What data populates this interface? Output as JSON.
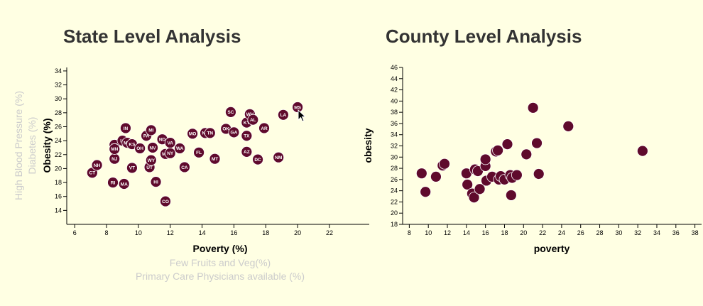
{
  "left_panel": {
    "title": "State Level Analysis",
    "x_axis_options": [
      "Poverty (%)",
      "Few Fruits and Veg(%)",
      "Primary Care Physicians available (%)"
    ],
    "y_axis_options": [
      "Obesity (%)",
      "Diabetes (%)",
      "High Blood Pressure (%)"
    ]
  },
  "right_panel": {
    "title": "County Level Analysis"
  },
  "colors": {
    "marker": "#5f0a2c",
    "title": "#333333",
    "inactive_label": "#cccccc",
    "background": "#ffffe3"
  },
  "chart_data": [
    {
      "type": "scatter",
      "title": "State Level Analysis",
      "xlabel": "Poverty (%)",
      "ylabel": "Obesity (%)",
      "xlim": [
        5.5,
        24.5
      ],
      "ylim": [
        12,
        34.5
      ],
      "xticks": [
        6,
        8,
        10,
        12,
        14,
        16,
        18,
        20,
        22
      ],
      "yticks": [
        14,
        16,
        18,
        20,
        22,
        24,
        26,
        28,
        30,
        32,
        34
      ],
      "points": [
        {
          "label": "CT",
          "x": 7.1,
          "y": 19.4
        },
        {
          "label": "NH",
          "x": 7.4,
          "y": 20.5
        },
        {
          "label": "RI",
          "x": 8.4,
          "y": 18.0
        },
        {
          "label": "MA",
          "x": 9.1,
          "y": 17.8
        },
        {
          "label": "NJ",
          "x": 8.5,
          "y": 21.4
        },
        {
          "label": "WI",
          "x": 8.5,
          "y": 23.4
        },
        {
          "label": "MN",
          "x": 8.5,
          "y": 22.8
        },
        {
          "label": "IA",
          "x": 9.0,
          "y": 24.0
        },
        {
          "label": "MD",
          "x": 9.3,
          "y": 23.7
        },
        {
          "label": "VT",
          "x": 9.6,
          "y": 20.1
        },
        {
          "label": "IN",
          "x": 9.2,
          "y": 25.8
        },
        {
          "label": "KS",
          "x": 9.6,
          "y": 23.5
        },
        {
          "label": "OH",
          "x": 10.1,
          "y": 22.9
        },
        {
          "label": "PA",
          "x": 10.5,
          "y": 24.7
        },
        {
          "label": "MI",
          "x": 10.8,
          "y": 25.5
        },
        {
          "label": "UT",
          "x": 10.7,
          "y": 20.2
        },
        {
          "label": "WY",
          "x": 10.8,
          "y": 21.2
        },
        {
          "label": "NV",
          "x": 10.9,
          "y": 23.0
        },
        {
          "label": "HI",
          "x": 11.1,
          "y": 18.1
        },
        {
          "label": "ND",
          "x": 11.5,
          "y": 24.2
        },
        {
          "label": "ME",
          "x": 11.7,
          "y": 22.1
        },
        {
          "label": "VA",
          "x": 12.0,
          "y": 23.7
        },
        {
          "label": "NY",
          "x": 12.0,
          "y": 22.2
        },
        {
          "label": "WA",
          "x": 12.6,
          "y": 22.9
        },
        {
          "label": "CO",
          "x": 11.7,
          "y": 15.3
        },
        {
          "label": "CA",
          "x": 12.9,
          "y": 20.2
        },
        {
          "label": "MO",
          "x": 13.4,
          "y": 25.0
        },
        {
          "label": "FL",
          "x": 13.8,
          "y": 22.3
        },
        {
          "label": "NC",
          "x": 14.2,
          "y": 25.1
        },
        {
          "label": "TN",
          "x": 14.5,
          "y": 25.1
        },
        {
          "label": "MT",
          "x": 14.8,
          "y": 21.4
        },
        {
          "label": "OK",
          "x": 15.5,
          "y": 25.7
        },
        {
          "label": "SC",
          "x": 15.8,
          "y": 28.1
        },
        {
          "label": "GA",
          "x": 16.0,
          "y": 25.2
        },
        {
          "label": "AZ",
          "x": 16.8,
          "y": 22.4
        },
        {
          "label": "DC",
          "x": 17.5,
          "y": 21.3
        },
        {
          "label": "TX",
          "x": 16.8,
          "y": 24.7
        },
        {
          "label": "KY",
          "x": 16.8,
          "y": 26.6
        },
        {
          "label": "WV",
          "x": 17.0,
          "y": 27.8
        },
        {
          "label": "AL",
          "x": 17.2,
          "y": 27.0
        },
        {
          "label": "AR",
          "x": 17.9,
          "y": 25.8
        },
        {
          "label": "NM",
          "x": 18.8,
          "y": 21.6
        },
        {
          "label": "LA",
          "x": 19.1,
          "y": 27.7
        },
        {
          "label": "MS",
          "x": 20.0,
          "y": 28.8
        }
      ]
    },
    {
      "type": "scatter",
      "title": "County Level Analysis",
      "xlabel": "poverty",
      "ylabel": "obesity",
      "xlim": [
        7.3,
        38.7
      ],
      "ylim": [
        18,
        46
      ],
      "xticks": [
        8,
        10,
        12,
        14,
        16,
        18,
        20,
        22,
        24,
        26,
        28,
        30,
        32,
        34,
        36,
        38
      ],
      "yticks": [
        18,
        20,
        22,
        24,
        26,
        28,
        30,
        32,
        34,
        36,
        38,
        40,
        42,
        44,
        46
      ],
      "points": [
        {
          "x": 9.3,
          "y": 27.1
        },
        {
          "x": 9.7,
          "y": 23.8
        },
        {
          "x": 10.8,
          "y": 26.5
        },
        {
          "x": 11.5,
          "y": 28.5
        },
        {
          "x": 11.7,
          "y": 28.8
        },
        {
          "x": 14.0,
          "y": 27.1
        },
        {
          "x": 14.1,
          "y": 25.1
        },
        {
          "x": 14.6,
          "y": 23.5
        },
        {
          "x": 14.8,
          "y": 22.8
        },
        {
          "x": 14.9,
          "y": 27.8
        },
        {
          "x": 15.2,
          "y": 27.5
        },
        {
          "x": 15.4,
          "y": 24.3
        },
        {
          "x": 16.0,
          "y": 28.4
        },
        {
          "x": 16.0,
          "y": 29.6
        },
        {
          "x": 16.1,
          "y": 25.8
        },
        {
          "x": 16.7,
          "y": 26.5
        },
        {
          "x": 17.1,
          "y": 31.0
        },
        {
          "x": 17.3,
          "y": 31.2
        },
        {
          "x": 17.4,
          "y": 26.0
        },
        {
          "x": 17.6,
          "y": 26.6
        },
        {
          "x": 18.0,
          "y": 26.0
        },
        {
          "x": 18.3,
          "y": 32.3
        },
        {
          "x": 18.6,
          "y": 26.8
        },
        {
          "x": 18.7,
          "y": 23.2
        },
        {
          "x": 18.8,
          "y": 26.3
        },
        {
          "x": 19.3,
          "y": 26.8
        },
        {
          "x": 20.3,
          "y": 30.5
        },
        {
          "x": 21.0,
          "y": 38.8
        },
        {
          "x": 21.4,
          "y": 32.5
        },
        {
          "x": 21.6,
          "y": 27.0
        },
        {
          "x": 24.7,
          "y": 35.5
        },
        {
          "x": 32.5,
          "y": 31.1
        }
      ]
    }
  ]
}
